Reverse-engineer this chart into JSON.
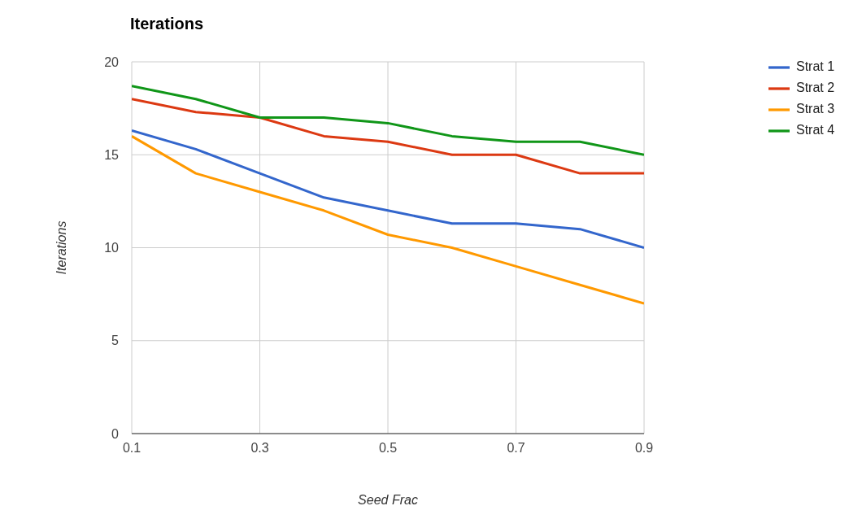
{
  "chart_data": {
    "type": "line",
    "title": "Iterations",
    "xlabel": "Seed Frac",
    "ylabel": "Iterations",
    "x": [
      0.1,
      0.2,
      0.3,
      0.4,
      0.5,
      0.6,
      0.7,
      0.8,
      0.9
    ],
    "series": [
      {
        "name": "Strat 1",
        "color": "#3366cc",
        "values": [
          16.3,
          15.3,
          14.0,
          12.7,
          12.0,
          11.3,
          11.3,
          11.0,
          10.0
        ]
      },
      {
        "name": "Strat 2",
        "color": "#dc3912",
        "values": [
          18.0,
          17.3,
          17.0,
          16.0,
          15.7,
          15.0,
          15.0,
          14.0,
          14.0
        ]
      },
      {
        "name": "Strat 3",
        "color": "#ff9900",
        "values": [
          16.0,
          14.0,
          13.0,
          12.0,
          10.7,
          10.0,
          9.0,
          8.0,
          7.0
        ]
      },
      {
        "name": "Strat 4",
        "color": "#109618",
        "values": [
          18.7,
          18.0,
          17.0,
          17.0,
          16.7,
          16.0,
          15.7,
          15.7,
          15.0
        ]
      }
    ],
    "xlim": [
      0.1,
      0.9
    ],
    "xticks": [
      0.1,
      0.3,
      0.5,
      0.7,
      0.9
    ],
    "ylim": [
      0,
      20
    ],
    "yticks": [
      0,
      5,
      10,
      15,
      20
    ],
    "grid": true,
    "legend": "right",
    "marker": "none"
  }
}
